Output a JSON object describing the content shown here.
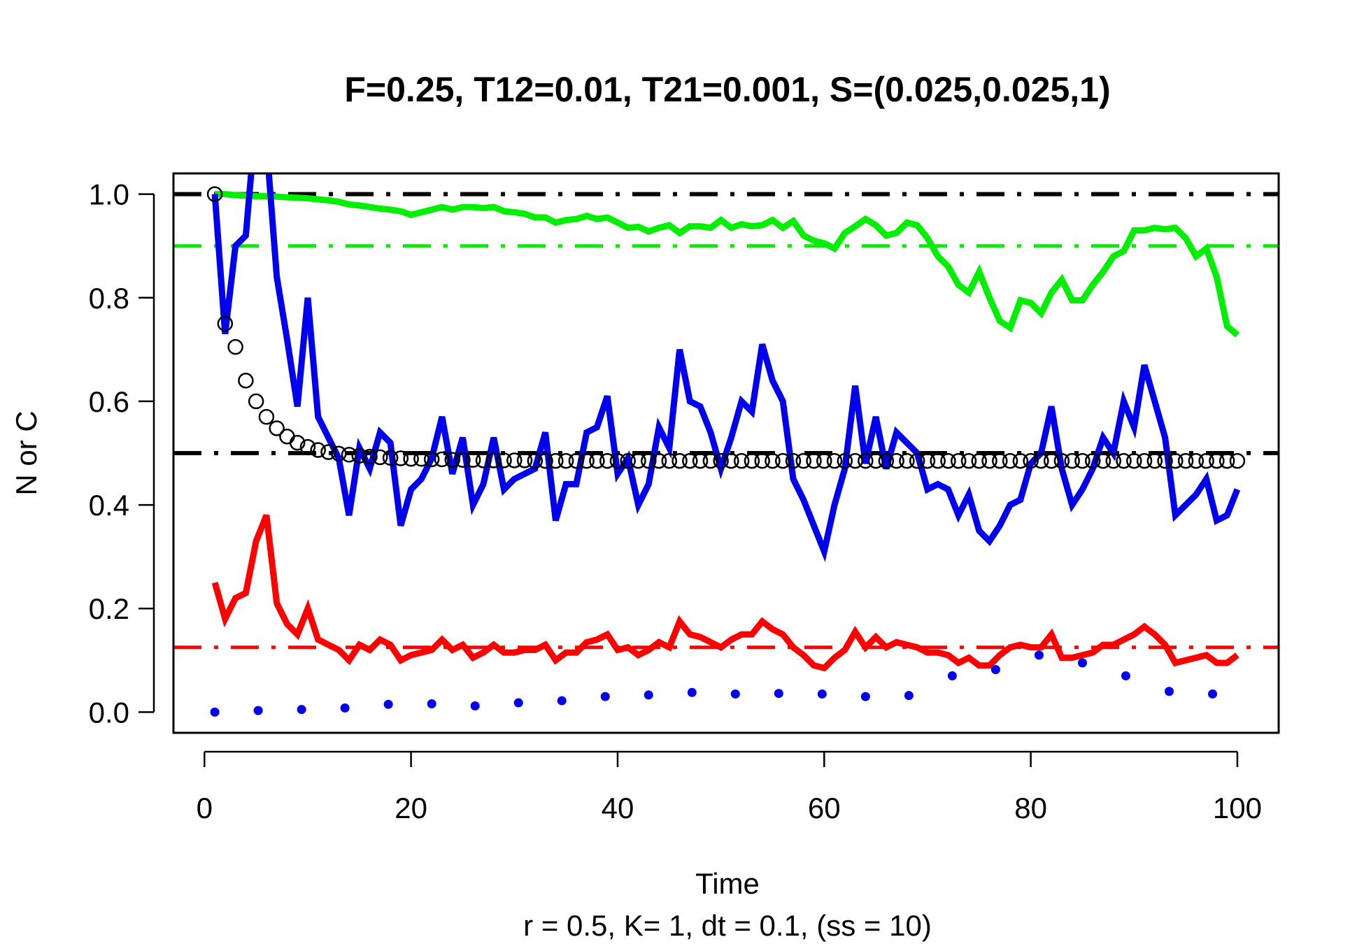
{
  "chart_data": {
    "type": "line",
    "title": "F=0.25, T12=0.01, T21=0.001, S=(0.025,0.025,1)",
    "xlabel": "Time",
    "ylabel": "N or C",
    "subtitle": "r = 0.5, K= 1, dt = 0.1, (ss = 10)",
    "xlim": [
      -3,
      104
    ],
    "ylim": [
      -0.04,
      1.04
    ],
    "x_ticks": [
      0,
      20,
      40,
      60,
      80,
      100
    ],
    "x_tick_labels": [
      "0",
      "20",
      "40",
      "60",
      "80",
      "100"
    ],
    "y_ticks": [
      0.0,
      0.2,
      0.4,
      0.6,
      0.8,
      1.0
    ],
    "y_tick_labels": [
      "0.0",
      "0.2",
      "0.4",
      "0.6",
      "0.8",
      "1.0"
    ],
    "grid": false,
    "colors": {
      "green": "#00ee00",
      "blue": "#0000ee",
      "red": "#ff0000",
      "black": "#000000"
    },
    "reference_lines": [
      {
        "y": 1.0,
        "color": "#000000",
        "style": "dashdot",
        "width": 6
      },
      {
        "y": 0.5,
        "color": "#000000",
        "style": "dashdot",
        "width": 6
      },
      {
        "y": 0.9,
        "color": "#00ee00",
        "style": "dashdot",
        "width": 5
      },
      {
        "y": 0.125,
        "color": "#ff0000",
        "style": "dashdot",
        "width": 5
      }
    ],
    "series": [
      {
        "color": "#00ee00",
        "style": "line",
        "width": 9,
        "x": [
          1,
          2,
          3,
          4,
          5,
          6,
          7,
          8,
          9,
          10,
          11,
          12,
          13,
          14,
          15,
          16,
          17,
          18,
          19,
          20,
          21,
          22,
          23,
          24,
          25,
          26,
          27,
          28,
          29,
          30,
          31,
          32,
          33,
          34,
          35,
          36,
          37,
          38,
          39,
          40,
          41,
          42,
          43,
          44,
          45,
          46,
          47,
          48,
          49,
          50,
          51,
          52,
          53,
          54,
          55,
          56,
          57,
          58,
          59,
          60,
          61,
          62,
          63,
          64,
          65,
          66,
          67,
          68,
          69,
          70,
          71,
          72,
          73,
          74,
          75,
          76,
          77,
          78,
          79,
          80,
          81,
          82,
          83,
          84,
          85,
          86,
          87,
          88,
          89,
          90,
          91,
          92,
          93,
          94,
          95,
          96,
          97,
          98,
          99,
          100
        ],
        "values": [
          1.0,
          1.0,
          0.998,
          0.997,
          0.996,
          0.996,
          0.995,
          0.994,
          0.993,
          0.992,
          0.99,
          0.988,
          0.985,
          0.98,
          0.978,
          0.975,
          0.972,
          0.97,
          0.967,
          0.96,
          0.965,
          0.97,
          0.975,
          0.97,
          0.975,
          0.975,
          0.973,
          0.975,
          0.967,
          0.965,
          0.962,
          0.955,
          0.955,
          0.945,
          0.95,
          0.952,
          0.958,
          0.952,
          0.955,
          0.945,
          0.935,
          0.937,
          0.928,
          0.935,
          0.94,
          0.925,
          0.938,
          0.938,
          0.935,
          0.95,
          0.935,
          0.942,
          0.938,
          0.94,
          0.95,
          0.935,
          0.948,
          0.92,
          0.91,
          0.905,
          0.895,
          0.925,
          0.938,
          0.952,
          0.94,
          0.92,
          0.925,
          0.945,
          0.94,
          0.915,
          0.88,
          0.86,
          0.825,
          0.81,
          0.85,
          0.8,
          0.755,
          0.742,
          0.795,
          0.79,
          0.77,
          0.81,
          0.835,
          0.795,
          0.795,
          0.825,
          0.85,
          0.88,
          0.89,
          0.93,
          0.93,
          0.935,
          0.932,
          0.935,
          0.915,
          0.88,
          0.895,
          0.84,
          0.745,
          0.728
        ]
      },
      {
        "color": "#0000ee",
        "style": "line",
        "width": 9,
        "x": [
          1,
          2,
          3,
          4,
          5,
          6,
          7,
          8,
          9,
          10,
          11,
          12,
          13,
          14,
          15,
          16,
          17,
          18,
          19,
          20,
          21,
          22,
          23,
          24,
          25,
          26,
          27,
          28,
          29,
          30,
          31,
          32,
          33,
          34,
          35,
          36,
          37,
          38,
          39,
          40,
          41,
          42,
          43,
          44,
          45,
          46,
          47,
          48,
          49,
          50,
          51,
          52,
          53,
          54,
          55,
          56,
          57,
          58,
          59,
          60,
          61,
          62,
          63,
          64,
          65,
          66,
          67,
          68,
          69,
          70,
          71,
          72,
          73,
          74,
          75,
          76,
          77,
          78,
          79,
          80,
          81,
          82,
          83,
          84,
          85,
          86,
          87,
          88,
          89,
          90,
          91,
          92,
          93,
          94,
          95,
          96,
          97,
          98,
          99,
          100
        ],
        "values": [
          1.0,
          0.73,
          0.9,
          0.92,
          1.15,
          1.1,
          0.84,
          0.72,
          0.59,
          0.8,
          0.57,
          0.53,
          0.49,
          0.38,
          0.51,
          0.47,
          0.54,
          0.52,
          0.36,
          0.43,
          0.45,
          0.49,
          0.57,
          0.46,
          0.53,
          0.4,
          0.44,
          0.53,
          0.43,
          0.45,
          0.46,
          0.47,
          0.54,
          0.37,
          0.44,
          0.44,
          0.54,
          0.55,
          0.61,
          0.46,
          0.49,
          0.4,
          0.44,
          0.55,
          0.51,
          0.7,
          0.6,
          0.59,
          0.54,
          0.47,
          0.53,
          0.6,
          0.58,
          0.71,
          0.64,
          0.6,
          0.45,
          0.41,
          0.36,
          0.31,
          0.4,
          0.47,
          0.63,
          0.48,
          0.57,
          0.47,
          0.54,
          0.52,
          0.5,
          0.43,
          0.44,
          0.43,
          0.38,
          0.42,
          0.35,
          0.33,
          0.36,
          0.4,
          0.41,
          0.48,
          0.5,
          0.59,
          0.47,
          0.4,
          0.43,
          0.47,
          0.53,
          0.5,
          0.6,
          0.55,
          0.67,
          0.6,
          0.53,
          0.38,
          0.4,
          0.42,
          0.45,
          0.37,
          0.38,
          0.43
        ]
      },
      {
        "color": "#ff0000",
        "style": "line",
        "width": 9,
        "x": [
          1,
          2,
          3,
          4,
          5,
          6,
          7,
          8,
          9,
          10,
          11,
          12,
          13,
          14,
          15,
          16,
          17,
          18,
          19,
          20,
          21,
          22,
          23,
          24,
          25,
          26,
          27,
          28,
          29,
          30,
          31,
          32,
          33,
          34,
          35,
          36,
          37,
          38,
          39,
          40,
          41,
          42,
          43,
          44,
          45,
          46,
          47,
          48,
          49,
          50,
          51,
          52,
          53,
          54,
          55,
          56,
          57,
          58,
          59,
          60,
          61,
          62,
          63,
          64,
          65,
          66,
          67,
          68,
          69,
          70,
          71,
          72,
          73,
          74,
          75,
          76,
          77,
          78,
          79,
          80,
          81,
          82,
          83,
          84,
          85,
          86,
          87,
          88,
          89,
          90,
          91,
          92,
          93,
          94,
          95,
          96,
          97,
          98,
          99,
          100
        ],
        "values": [
          0.25,
          0.18,
          0.22,
          0.23,
          0.33,
          0.38,
          0.21,
          0.17,
          0.15,
          0.2,
          0.14,
          0.13,
          0.12,
          0.1,
          0.13,
          0.12,
          0.14,
          0.13,
          0.1,
          0.11,
          0.115,
          0.12,
          0.14,
          0.12,
          0.13,
          0.105,
          0.115,
          0.13,
          0.115,
          0.115,
          0.12,
          0.12,
          0.13,
          0.1,
          0.115,
          0.115,
          0.135,
          0.14,
          0.15,
          0.12,
          0.125,
          0.11,
          0.12,
          0.135,
          0.125,
          0.175,
          0.15,
          0.145,
          0.135,
          0.125,
          0.14,
          0.15,
          0.15,
          0.175,
          0.16,
          0.15,
          0.125,
          0.11,
          0.09,
          0.085,
          0.105,
          0.12,
          0.155,
          0.125,
          0.145,
          0.125,
          0.135,
          0.13,
          0.125,
          0.115,
          0.115,
          0.11,
          0.095,
          0.105,
          0.09,
          0.09,
          0.11,
          0.125,
          0.13,
          0.125,
          0.125,
          0.15,
          0.105,
          0.105,
          0.11,
          0.115,
          0.13,
          0.13,
          0.14,
          0.15,
          0.165,
          0.15,
          0.13,
          0.095,
          0.1,
          0.105,
          0.11,
          0.095,
          0.095,
          0.11
        ]
      },
      {
        "color": "#000000",
        "style": "open-circles",
        "x": [
          1,
          2,
          3,
          4,
          5,
          6,
          7,
          8,
          9,
          10,
          11,
          12,
          13,
          14,
          15,
          16,
          17,
          18,
          19,
          20,
          21,
          22,
          23,
          24,
          25,
          26,
          27,
          28,
          29,
          30,
          31,
          32,
          33,
          34,
          35,
          36,
          37,
          38,
          39,
          40,
          41,
          42,
          43,
          44,
          45,
          46,
          47,
          48,
          49,
          50,
          51,
          52,
          53,
          54,
          55,
          56,
          57,
          58,
          59,
          60,
          61,
          62,
          63,
          64,
          65,
          66,
          67,
          68,
          69,
          70,
          71,
          72,
          73,
          74,
          75,
          76,
          77,
          78,
          79,
          80,
          81,
          82,
          83,
          84,
          85,
          86,
          87,
          88,
          89,
          90,
          91,
          92,
          93,
          94,
          95,
          96,
          97,
          98,
          99,
          100
        ],
        "values": [
          1.0,
          0.75,
          0.705,
          0.64,
          0.6,
          0.57,
          0.548,
          0.532,
          0.52,
          0.512,
          0.506,
          0.502,
          0.499,
          0.497,
          0.495,
          0.493,
          0.492,
          0.491,
          0.49,
          0.489,
          0.489,
          0.488,
          0.488,
          0.487,
          0.487,
          0.487,
          0.486,
          0.486,
          0.486,
          0.486,
          0.486,
          0.485,
          0.485,
          0.485,
          0.485,
          0.485,
          0.485,
          0.485,
          0.485,
          0.485,
          0.485,
          0.485,
          0.485,
          0.485,
          0.485,
          0.485,
          0.485,
          0.485,
          0.485,
          0.485,
          0.485,
          0.485,
          0.485,
          0.485,
          0.485,
          0.485,
          0.485,
          0.485,
          0.485,
          0.485,
          0.485,
          0.485,
          0.485,
          0.485,
          0.485,
          0.485,
          0.485,
          0.485,
          0.485,
          0.485,
          0.485,
          0.485,
          0.485,
          0.485,
          0.485,
          0.485,
          0.485,
          0.485,
          0.485,
          0.485,
          0.485,
          0.485,
          0.485,
          0.485,
          0.485,
          0.485,
          0.485,
          0.485,
          0.485,
          0.485,
          0.485,
          0.485,
          0.485,
          0.485,
          0.485,
          0.485,
          0.485,
          0.485,
          0.485,
          0.485
        ]
      },
      {
        "color": "#0000ee",
        "style": "dots",
        "x": [
          1,
          5.2,
          9.4,
          13.6,
          17.8,
          22,
          26.2,
          30.4,
          34.6,
          38.8,
          43,
          47.2,
          51.4,
          55.6,
          59.8,
          64,
          68.2,
          72.4,
          76.6,
          80.8,
          85,
          89.2,
          93.4,
          97.6
        ],
        "values": [
          0.0,
          0.003,
          0.005,
          0.008,
          0.015,
          0.016,
          0.012,
          0.018,
          0.022,
          0.03,
          0.033,
          0.038,
          0.035,
          0.036,
          0.035,
          0.03,
          0.032,
          0.07,
          0.082,
          0.11,
          0.095,
          0.07,
          0.04,
          0.035
        ]
      }
    ]
  }
}
